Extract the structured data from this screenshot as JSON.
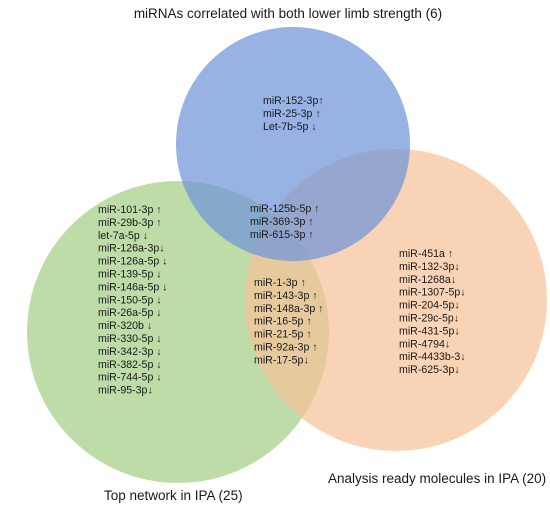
{
  "sets": {
    "top": {
      "label": "miRNAs correlated with both lower limb strength (6)",
      "color": "#6f94d8"
    },
    "left": {
      "label": "Top network in IPA  (25)",
      "color": "#a4cf87"
    },
    "right": {
      "label": "Analysis ready molecules in IPA (20)",
      "color": "#f7c29a"
    }
  },
  "regions": {
    "top_only": [
      "miR-152-3p↑",
      "miR-25-3p  ↑",
      "Let-7b-5p ↓"
    ],
    "all_three": [
      "miR-125b-5p ↑",
      "miR-369-3p ↑",
      "miR-615-3p ↑"
    ],
    "left_only": [
      "miR-101-3p ↑",
      "miR-29b-3p ↑",
      "let-7a-5p ↓",
      "miR-126a-3p↓",
      "miR-126a-5p ↓",
      "miR-139-5p ↓",
      "miR-146a-5p ↓",
      "miR-150-5p ↓",
      "miR-26a-5p ↓",
      "miR-320b ↓",
      "miR-330-5p ↓",
      "miR-342-3p ↓",
      "miR-382-5p ↓",
      "miR-744-5p ↓",
      "miR-95-3p↓"
    ],
    "left_right": [
      "miR-1-3p ↑",
      "miR-143-3p ↑",
      "miR-148a-3p ↑",
      "miR-16-5p ↑",
      "miR-21-5p ↑",
      "miR-92a-3p ↑",
      "miR-17-5p↓"
    ],
    "right_only": [
      "miR-451a ↑",
      "miR-132-3p↓",
      "miR-1268a↓",
      "miR-1307-5p↓",
      "miR-204-5p↓",
      "miR-29c-5p↓",
      "miR-431-5p↓",
      "miR-4794↓",
      "miR-4433b-3↓",
      "miR-625-3p↓"
    ]
  }
}
